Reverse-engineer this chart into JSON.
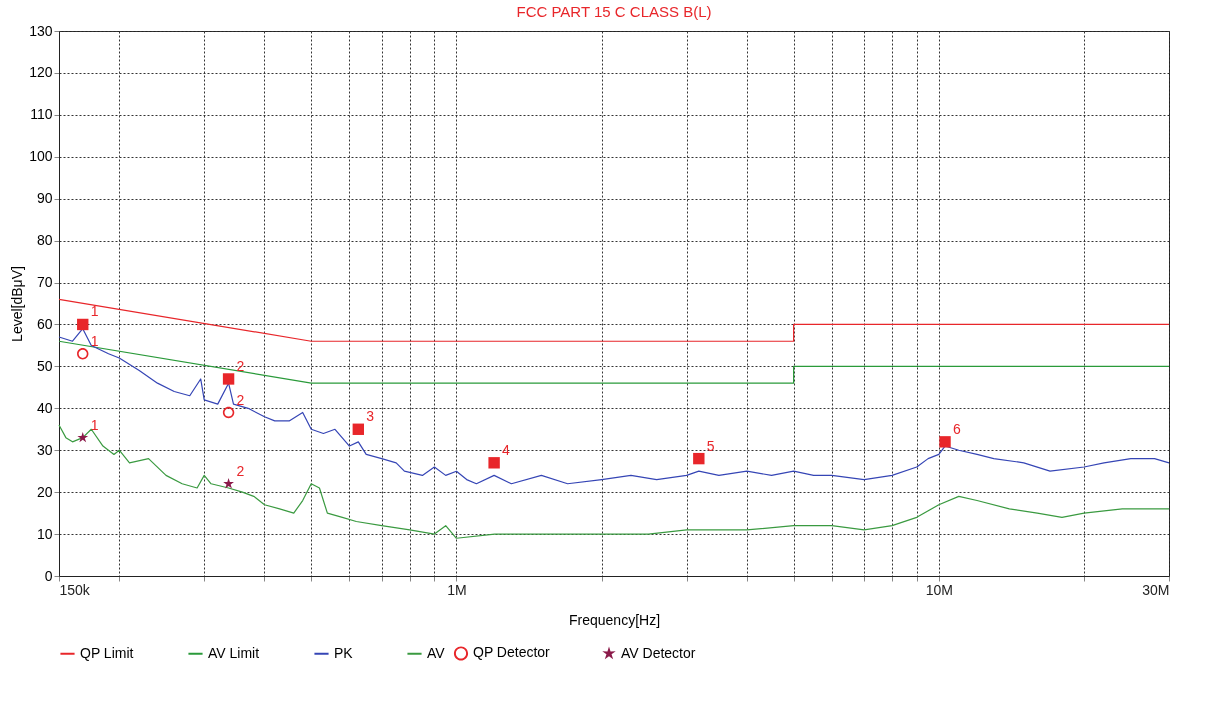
{
  "chart_data": {
    "type": "line",
    "title": "FCC PART 15 C CLASS B(L)",
    "xlabel": "Frequency[Hz]",
    "ylabel": "Level[dBμV]",
    "log": "x",
    "grid": true,
    "legend": "bottom",
    "xlim": [
      150000,
      30000000
    ],
    "ylim": [
      0,
      130
    ],
    "xticks": [
      {
        "value": 150000,
        "label": "150k"
      },
      {
        "value": 200000,
        "label": null
      },
      {
        "value": 300000,
        "label": null
      },
      {
        "value": 400000,
        "label": null
      },
      {
        "value": 500000,
        "label": null
      },
      {
        "value": 600000,
        "label": null
      },
      {
        "value": 700000,
        "label": null
      },
      {
        "value": 800000,
        "label": null
      },
      {
        "value": 900000,
        "label": null
      },
      {
        "value": 1000000,
        "label": "1M"
      },
      {
        "value": 2000000,
        "label": null
      },
      {
        "value": 3000000,
        "label": null
      },
      {
        "value": 4000000,
        "label": null
      },
      {
        "value": 5000000,
        "label": null
      },
      {
        "value": 6000000,
        "label": null
      },
      {
        "value": 7000000,
        "label": null
      },
      {
        "value": 8000000,
        "label": null
      },
      {
        "value": 9000000,
        "label": null
      },
      {
        "value": 10000000,
        "label": "10M"
      },
      {
        "value": 20000000,
        "label": null
      },
      {
        "value": 30000000,
        "label": "30M"
      }
    ],
    "yticks": [
      0,
      10,
      20,
      30,
      40,
      50,
      60,
      70,
      80,
      90,
      100,
      110,
      120,
      130
    ],
    "series": [
      {
        "name": "QP Limit",
        "color": "#e8262a",
        "x": [
          150000,
          500000,
          5000000,
          5000000,
          30000000
        ],
        "values": [
          66,
          56,
          56,
          60,
          60
        ]
      },
      {
        "name": "AV Limit",
        "color": "#2a9a3a",
        "x": [
          150000,
          500000,
          5000000,
          5000000,
          30000000
        ],
        "values": [
          56,
          46,
          46,
          50,
          50
        ]
      },
      {
        "name": "PK",
        "color": "#3545b5",
        "x": [
          150000,
          160000,
          168000,
          175000,
          190000,
          200000,
          220000,
          240000,
          260000,
          280000,
          295000,
          300000,
          320000,
          337000,
          345000,
          370000,
          400000,
          420000,
          450000,
          480000,
          500000,
          530000,
          560000,
          600000,
          626000,
          650000,
          700000,
          750000,
          780000,
          850000,
          900000,
          950000,
          1000000,
          1050000,
          1100000,
          1197000,
          1300000,
          1500000,
          1700000,
          2000000,
          2300000,
          2600000,
          3000000,
          3180000,
          3500000,
          4000000,
          4500000,
          5000000,
          5500000,
          6000000,
          7000000,
          8000000,
          9000000,
          9500000,
          10000000,
          10300000,
          11000000,
          12000000,
          13000000,
          15000000,
          17000000,
          20000000,
          22000000,
          25000000,
          28000000,
          30000000
        ],
        "values": [
          57,
          56,
          59,
          55,
          53,
          52,
          49,
          46,
          44,
          43,
          47,
          42,
          41,
          46,
          41,
          40,
          38,
          37,
          37,
          39,
          35,
          34,
          35,
          31,
          32,
          29,
          28,
          27,
          25,
          24,
          26,
          24,
          25,
          23,
          22,
          24,
          22,
          24,
          22,
          23,
          24,
          23,
          24,
          25,
          24,
          25,
          24,
          25,
          24,
          24,
          23,
          24,
          26,
          28,
          29,
          31,
          30,
          29,
          28,
          27,
          25,
          26,
          27,
          28,
          28,
          27
        ]
      },
      {
        "name": "AV",
        "color": "#3a9a40",
        "x": [
          150000,
          155000,
          160000,
          168000,
          175000,
          185000,
          195000,
          200000,
          210000,
          230000,
          250000,
          270000,
          290000,
          300000,
          310000,
          337000,
          360000,
          380000,
          400000,
          430000,
          460000,
          480000,
          500000,
          520000,
          540000,
          580000,
          620000,
          700000,
          800000,
          900000,
          950000,
          1000000,
          1200000,
          1500000,
          2000000,
          2500000,
          3000000,
          4000000,
          5000000,
          6000000,
          7000000,
          8000000,
          9000000,
          10000000,
          11000000,
          12000000,
          14000000,
          16000000,
          18000000,
          20000000,
          24000000,
          28000000,
          30000000
        ],
        "values": [
          36,
          33,
          32,
          33,
          35,
          31,
          29,
          30,
          27,
          28,
          24,
          22,
          21,
          24,
          22,
          21,
          20,
          19,
          17,
          16,
          15,
          18,
          22,
          21,
          15,
          14,
          13,
          12,
          11,
          10,
          12,
          9,
          10,
          10,
          10,
          10,
          11,
          11,
          12,
          12,
          11,
          12,
          14,
          17,
          19,
          18,
          16,
          15,
          14,
          15,
          16,
          16,
          16
        ]
      },
      {
        "type": "scatter",
        "color": "#e8262a",
        "marker": "square",
        "x": [
          168000,
          337000,
          626000,
          1197000,
          3180000,
          10300000
        ],
        "values": [
          60,
          47,
          35,
          27,
          28,
          32
        ]
      },
      {
        "name": "QP Detector",
        "type": "scatter",
        "color": "#e8262a",
        "marker": "circle",
        "x": [
          168000,
          337000
        ],
        "values": [
          53,
          39
        ]
      },
      {
        "name": "AV Detector",
        "type": "scatter",
        "color": "#8b1a4a",
        "marker": "star",
        "x": [
          168000,
          337000
        ],
        "values": [
          33,
          22
        ]
      }
    ],
    "annotations": [
      {
        "text": "1",
        "x": 168000,
        "y": 60
      },
      {
        "text": "2",
        "x": 337000,
        "y": 47
      },
      {
        "text": "3",
        "x": 626000,
        "y": 35
      },
      {
        "text": "4",
        "x": 1197000,
        "y": 27
      },
      {
        "text": "5",
        "x": 3180000,
        "y": 28
      },
      {
        "text": "6",
        "x": 10300000,
        "y": 32
      },
      {
        "text": "1",
        "x": 168000,
        "y": 53
      },
      {
        "text": "2",
        "x": 337000,
        "y": 39
      },
      {
        "text": "1",
        "x": 168000,
        "y": 33
      },
      {
        "text": "2",
        "x": 337000,
        "y": 22
      }
    ]
  }
}
